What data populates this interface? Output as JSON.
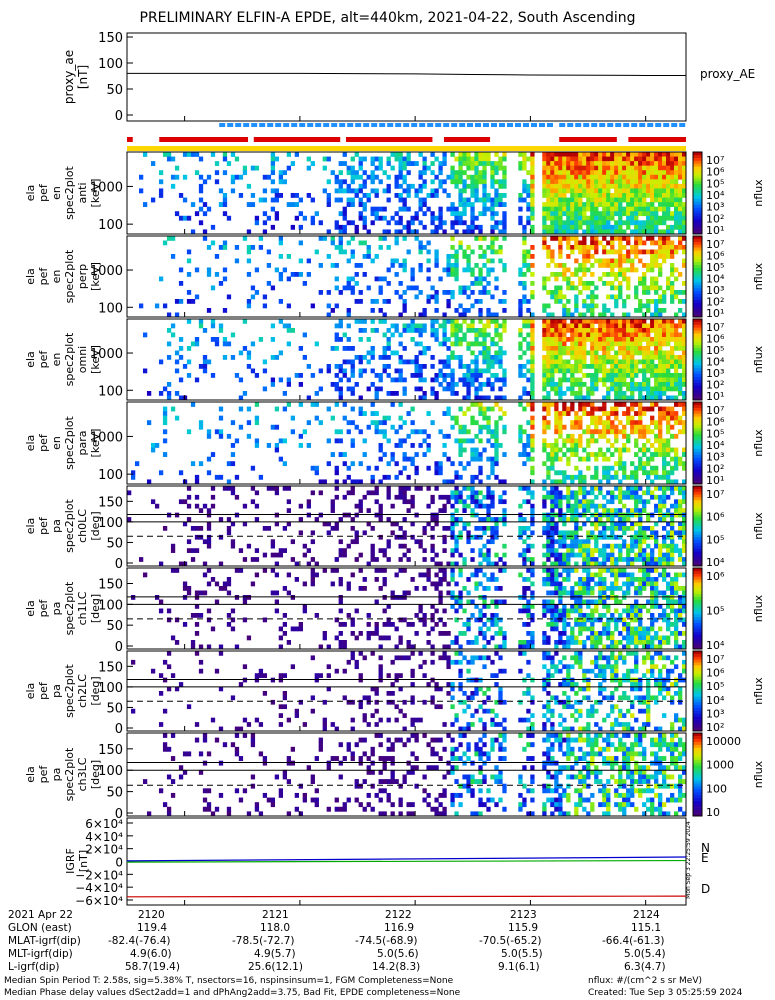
{
  "title": "PRELIMINARY ELFIN-A EPDE, alt=440km, 2021-04-22, South Ascending",
  "colors": {
    "red_bar": "#dd0000",
    "blue_bar": "#1e90ff",
    "yellow_bar": "#ffd700",
    "line_N": "#0000cc",
    "line_E": "#00aa00",
    "line_D": "#cc0000"
  },
  "chart_data": [
    {
      "type": "line",
      "name": "proxy_ae",
      "ylabel": "proxy_ae\n[nT]",
      "ylim": [
        0,
        150
      ],
      "ticks": [
        "150",
        "100",
        "50",
        "0"
      ],
      "legend": "proxy_AE",
      "x": [
        2119.5,
        2120,
        2121,
        2122,
        2122.5,
        2123,
        2124,
        2124.35
      ],
      "y": [
        80,
        80,
        80,
        79,
        78,
        77,
        76,
        76
      ]
    },
    {
      "type": "heatmap",
      "name": "ela_pef_en_spec2plot_anti",
      "ylabel": "ela\npef\nen\nspec2plot\nanti\n[keV]",
      "ticks": [
        "1000",
        "100"
      ],
      "colorbar": {
        "label": "nflux",
        "labels": [
          "10⁷",
          "10⁶",
          "10⁵",
          "10⁴",
          "10³",
          "10²",
          "10¹"
        ]
      }
    },
    {
      "type": "heatmap",
      "name": "ela_pef_en_spec2plot_perp",
      "ylabel": "ela\npef\nen\nspec2plot\nperp\n[keV]",
      "ticks": [
        "1000",
        "100"
      ],
      "colorbar": {
        "label": "nflux",
        "labels": [
          "10⁷",
          "10⁶",
          "10⁵",
          "10⁴",
          "10³",
          "10²",
          "10¹"
        ]
      }
    },
    {
      "type": "heatmap",
      "name": "ela_pef_en_spec2plot_omni",
      "ylabel": "ela\npef\nen\nspec2plot\nomni\n[keV]",
      "ticks": [
        "1000",
        "100"
      ],
      "colorbar": {
        "label": "nflux",
        "labels": [
          "10⁷",
          "10⁶",
          "10⁵",
          "10⁴",
          "10³",
          "10²",
          "10¹"
        ]
      }
    },
    {
      "type": "heatmap",
      "name": "ela_pef_en_spec2plot_para",
      "ylabel": "ela\npef\nen\nspec2plot\npara\n[keV]",
      "ticks": [
        "1000",
        "100"
      ],
      "colorbar": {
        "label": "nflux",
        "labels": [
          "10⁷",
          "10⁶",
          "10⁵",
          "10⁴",
          "10³",
          "10²",
          "10¹"
        ]
      }
    },
    {
      "type": "heatmap",
      "name": "ela_pef_pa_spec2plot_ch0LC",
      "ylabel": "ela\npef\npa\nspec2plot\nch0LC\n[deg]",
      "ticks": [
        "150",
        "100",
        "50",
        "0"
      ],
      "colorbar": {
        "label": "nflux",
        "labels": [
          "10⁷",
          "10⁶",
          "10⁵",
          "10⁴"
        ]
      }
    },
    {
      "type": "heatmap",
      "name": "ela_pef_pa_spec2plot_ch1LC",
      "ylabel": "ela\npef\npa\nspec2plot\nch1LC\n[deg]",
      "ticks": [
        "150",
        "100",
        "50",
        "0"
      ],
      "colorbar": {
        "label": "nflux",
        "labels": [
          "10⁶",
          "10⁵",
          "10⁴"
        ]
      }
    },
    {
      "type": "heatmap",
      "name": "ela_pef_pa_spec2plot_ch2LC",
      "ylabel": "ela\npef\npa\nspec2plot\nch2LC\n[deg]",
      "ticks": [
        "150",
        "100",
        "50",
        "0"
      ],
      "colorbar": {
        "label": "nflux",
        "labels": [
          "10⁷",
          "10⁶",
          "10⁵",
          "10⁴",
          "10³",
          "10²"
        ]
      }
    },
    {
      "type": "heatmap",
      "name": "ela_pef_pa_spec2plot_ch3LC",
      "ylabel": "ela\npef\npa\nspec2plot\nch3LC\n[deg]",
      "ticks": [
        "150",
        "100",
        "50",
        "0"
      ],
      "colorbar": {
        "label": "nflux",
        "labels": [
          "10000",
          "1000",
          "100",
          "10"
        ]
      }
    },
    {
      "type": "line",
      "name": "IGRF",
      "ylabel": "IGRF\n[nT]",
      "ticks": [
        "6×10⁴",
        "4×10⁴",
        "2×10⁴",
        "0",
        "−2×10⁴",
        "−4×10⁴",
        "−6×10⁴"
      ],
      "ylim": [
        -60000,
        60000
      ],
      "legend": [
        "N",
        "E",
        "D"
      ],
      "series": [
        {
          "name": "N",
          "x": [
            2119.5,
            2124.35
          ],
          "y": [
            1000,
            7000
          ]
        },
        {
          "name": "E",
          "x": [
            2119.5,
            2124.35
          ],
          "y": [
            -1000,
            1500
          ]
        },
        {
          "name": "D",
          "x": [
            2119.5,
            2124.35
          ],
          "y": [
            -55000,
            -54000
          ]
        }
      ]
    }
  ],
  "side_stamp": "Mon Sep  3 22:25:59 2024",
  "footer": {
    "date": "2021 Apr 22",
    "rows": [
      {
        "label": "GLON (east)",
        "values": [
          "119.4",
          "118.0",
          "116.9",
          "115.9",
          "115.1"
        ]
      },
      {
        "label": "MLAT-igrf(dip)",
        "values": [
          "-82.4(-76.4)",
          "-78.5(-72.7)",
          "-74.5(-68.9)",
          "-70.5(-65.2)",
          "-66.4(-61.3)"
        ]
      },
      {
        "label": "MLT-igrf(dip)",
        "values": [
          "4.9(6.0)",
          "4.9(5.7)",
          "5.0(5.6)",
          "5.0(5.5)",
          "5.0(5.4)"
        ]
      },
      {
        "label": "L-igrf(dip)",
        "values": [
          "58.7(19.4)",
          "25.6(12.1)",
          "14.2(8.3)",
          "9.1(6.1)",
          "6.3(4.7)"
        ]
      }
    ],
    "times": [
      "2120",
      "2121",
      "2122",
      "2123",
      "2124"
    ],
    "note1": "Median Spin Period T: 2.58s, sig=5.38% T, nsectors=16, nspinsinsum=1, FGM Completeness=None",
    "note2": "Median Phase delay values dSect2add=1 and dPhAng2add=3.75, Bad Fit, EPDE completeness=None",
    "note3": "nflux: #/(cm^2 s sr MeV)",
    "note4": "Created: Tue Sep  3 05:25:59 2024"
  }
}
